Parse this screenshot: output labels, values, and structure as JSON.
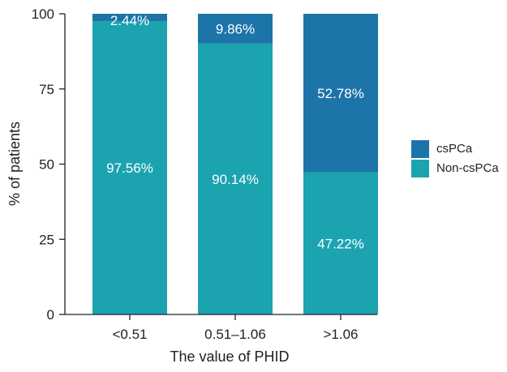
{
  "chart_data": {
    "type": "bar",
    "stacked": true,
    "title": "",
    "xlabel": "The value of PHID",
    "ylabel": "% of patients",
    "ylim": [
      0,
      100
    ],
    "yticks": [
      "0",
      "25",
      "50",
      "75",
      "100"
    ],
    "categories": [
      "<0.51",
      "0.51–1.06",
      ">1.06"
    ],
    "series": [
      {
        "name": "Non-csPCa",
        "color": "#1ba3b0",
        "values": [
          97.56,
          90.14,
          47.22
        ],
        "labels": [
          "97.56%",
          "90.14%",
          "47.22%"
        ]
      },
      {
        "name": "csPCa",
        "color": "#1c74a8",
        "values": [
          2.44,
          9.86,
          52.78
        ],
        "labels": [
          "2.44%",
          "9.86%",
          "52.78%"
        ]
      }
    ],
    "legend": {
      "position": "right",
      "entries": [
        "csPCa",
        "Non-csPCa"
      ]
    },
    "grid": false
  }
}
